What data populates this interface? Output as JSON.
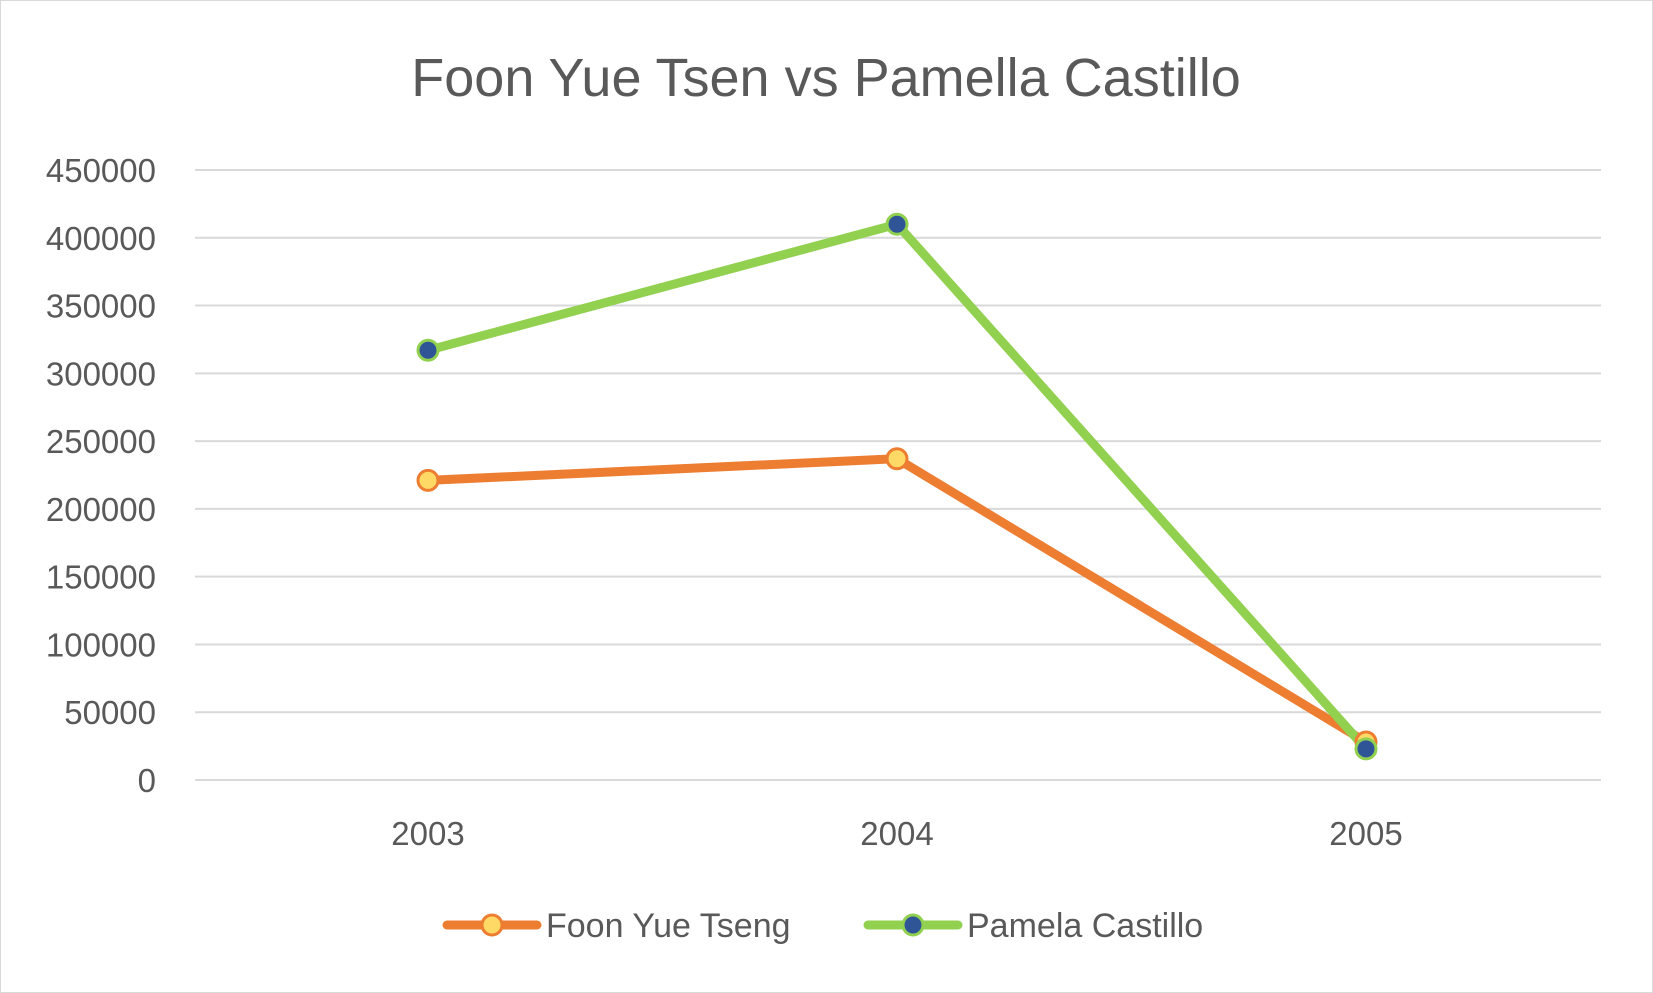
{
  "chart_data": {
    "type": "line",
    "title": "Foon Yue Tsen vs Pamella Castillo",
    "xlabel": "",
    "ylabel": "",
    "categories": [
      "2003",
      "2004",
      "2005"
    ],
    "ylim": [
      0,
      450000
    ],
    "yticks": [
      0,
      50000,
      100000,
      150000,
      200000,
      250000,
      300000,
      350000,
      400000,
      450000
    ],
    "ytick_labels": [
      "0",
      "50000",
      "100000",
      "150000",
      "200000",
      "250000",
      "300000",
      "350000",
      "400000",
      "450000"
    ],
    "grid": true,
    "legend_position": "bottom",
    "series": [
      {
        "name": "Foon Yue Tseng",
        "values": [
          221000,
          237000,
          28000
        ],
        "line_color": "#ed7d31",
        "marker_fill": "#ffd966",
        "marker_stroke": "#ed7d31"
      },
      {
        "name": "Pamela Castillo",
        "values": [
          317000,
          410000,
          23000
        ],
        "line_color": "#92d050",
        "marker_fill": "#2f5597",
        "marker_stroke": "#92d050"
      }
    ],
    "gridline_color": "#d9d9d9"
  }
}
